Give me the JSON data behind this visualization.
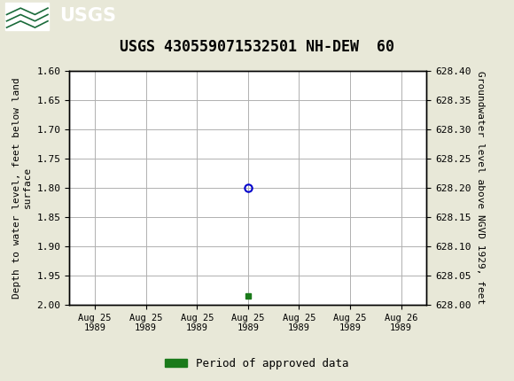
{
  "title": "USGS 430559071532501 NH-DEW  60",
  "ylabel_left": "Depth to water level, feet below land\nsurface",
  "ylabel_right": "Groundwater level above NGVD 1929, feet",
  "ylim_left": [
    2.0,
    1.6
  ],
  "ylim_right": [
    628.0,
    628.4
  ],
  "yticks_left": [
    1.6,
    1.65,
    1.7,
    1.75,
    1.8,
    1.85,
    1.9,
    1.95,
    2.0
  ],
  "yticks_right": [
    628.0,
    628.05,
    628.1,
    628.15,
    628.2,
    628.25,
    628.3,
    628.35,
    628.4
  ],
  "xtick_labels": [
    "Aug 25\n1989",
    "Aug 25\n1989",
    "Aug 25\n1989",
    "Aug 25\n1989",
    "Aug 25\n1989",
    "Aug 25\n1989",
    "Aug 26\n1989"
  ],
  "xtick_positions": [
    0,
    1,
    2,
    3,
    4,
    5,
    6
  ],
  "xlim": [
    -0.5,
    6.5
  ],
  "blue_point_x": 3,
  "blue_point_y": 1.8,
  "green_point_x": 3,
  "green_point_y": 1.985,
  "blue_color": "#0000cc",
  "green_color": "#1a7a1a",
  "header_color": "#1a6b3a",
  "background_color": "#e8e8d8",
  "plot_bg_color": "#ffffff",
  "grid_color": "#b0b0b0",
  "title_fontsize": 12,
  "legend_label": "Period of approved data",
  "font_family": "monospace"
}
